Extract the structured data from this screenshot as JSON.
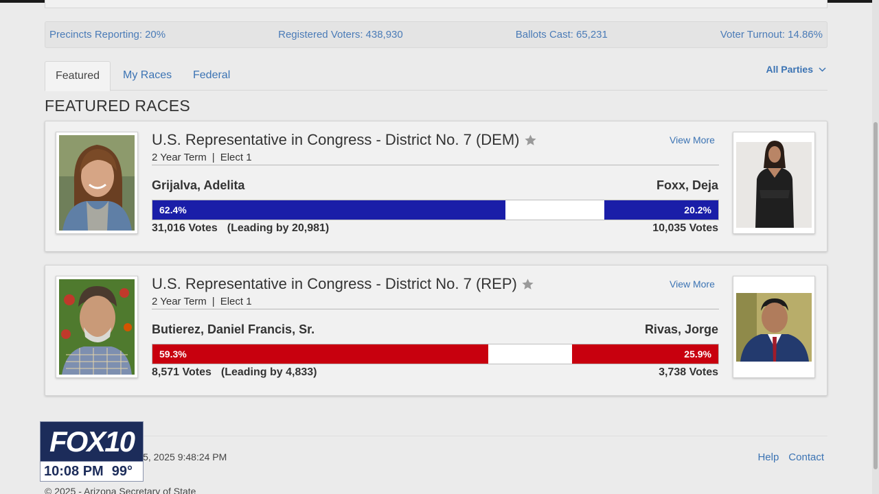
{
  "stats": {
    "precincts_label": "Precincts Reporting:",
    "precincts_value": "20%",
    "registered_label": "Registered Voters:",
    "registered_value": "438,930",
    "ballots_label": "Ballots Cast:",
    "ballots_value": "65,231",
    "turnout_label": "Voter Turnout:",
    "turnout_value": "14.86%"
  },
  "tabs": [
    {
      "label": "Featured",
      "active": true
    },
    {
      "label": "My Races",
      "active": false
    },
    {
      "label": "Federal",
      "active": false
    }
  ],
  "party_filter": {
    "label": "All Parties",
    "icon": "chevron-down-icon"
  },
  "section_title": "FEATURED RACES",
  "races": [
    {
      "title": "U.S. Representative in Congress - District No. 7 (DEM)",
      "term": "2 Year Term",
      "elect": "Elect 1",
      "view_more": "View More",
      "left": {
        "name": "Grijalva, Adelita",
        "pct_label": "62.4%",
        "pct": 62.4,
        "votes": "31,016 Votes",
        "lead": "(Leading by 20,981)"
      },
      "right": {
        "name": "Foxx, Deja",
        "pct_label": "20.2%",
        "pct": 20.2,
        "votes": "10,035 Votes"
      },
      "bar_color": "#1a1ea8"
    },
    {
      "title": "U.S. Representative in Congress - District No. 7 (REP)",
      "term": "2 Year Term",
      "elect": "Elect 1",
      "view_more": "View More",
      "left": {
        "name": "Butierez, Daniel Francis, Sr.",
        "pct_label": "59.3%",
        "pct": 59.3,
        "votes": "8,571 Votes",
        "lead": "(Leading by 4,833)"
      },
      "right": {
        "name": "Rivas, Jorge",
        "pct_label": "25.9%",
        "pct": 25.9,
        "votes": "3,738 Votes"
      },
      "bar_color": "#c8000e"
    }
  ],
  "footer": {
    "updated": "ay, July 15, 2025 9:48:24 PM",
    "help": "Help",
    "contact": "Contact",
    "copyright": "© 2025 - Arizona Secretary of State"
  },
  "tv_bug": {
    "logo": "FOX10",
    "time": "10:08 PM",
    "temp": "99°"
  }
}
